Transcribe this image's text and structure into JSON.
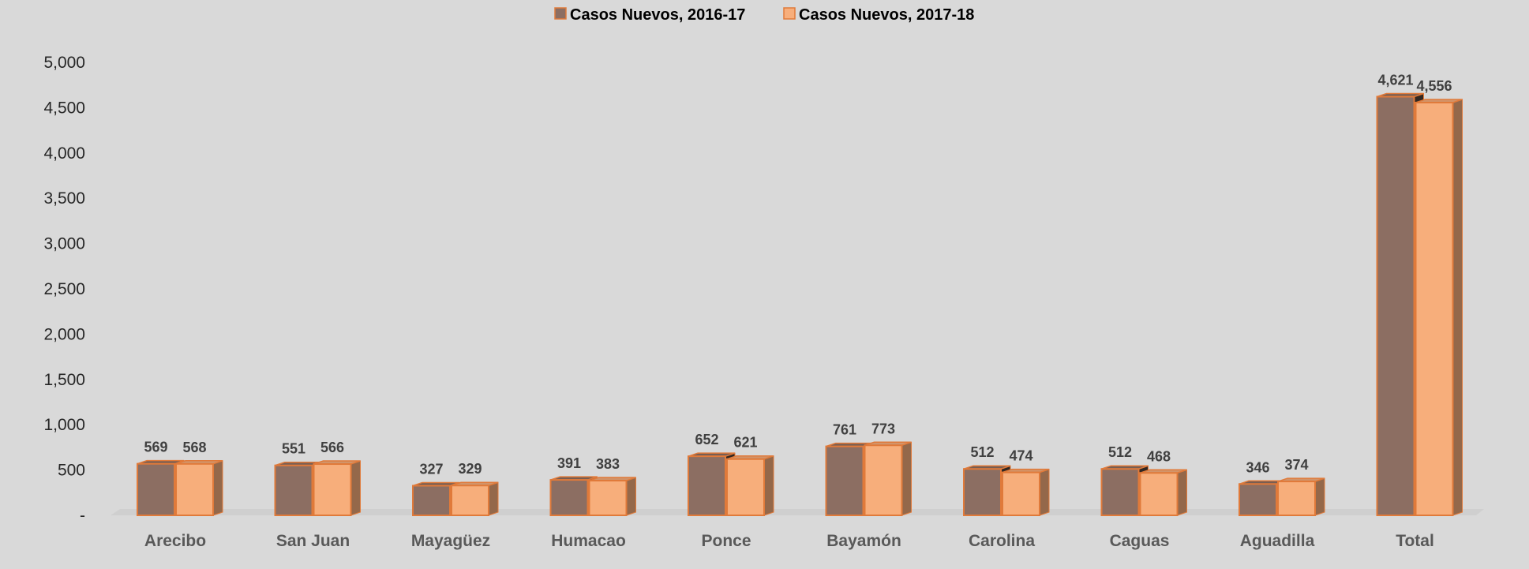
{
  "chart_data": {
    "type": "bar",
    "categories": [
      "Arecibo",
      "San Juan",
      "Mayagüez",
      "Humacao",
      "Ponce",
      "Bayamón",
      "Carolina",
      "Caguas",
      "Aguadilla",
      "Total"
    ],
    "series": [
      {
        "name": "Casos Nuevos, 2016-17",
        "values": [
          569,
          551,
          327,
          391,
          652,
          761,
          512,
          512,
          346,
          4621
        ],
        "labels": [
          "569",
          "551",
          "327",
          "391",
          "652",
          "761",
          "512",
          "512",
          "346",
          "4,621"
        ],
        "color": "#8c6e62"
      },
      {
        "name": "Casos Nuevos, 2017-18",
        "values": [
          568,
          566,
          329,
          383,
          621,
          773,
          474,
          468,
          374,
          4556
        ],
        "labels": [
          "568",
          "566",
          "329",
          "383",
          "621",
          "773",
          "474",
          "468",
          "374",
          "4,556"
        ],
        "color": "#f7ae7b"
      }
    ],
    "ylim": [
      0,
      5000
    ],
    "yticks": [
      0,
      500,
      1000,
      1500,
      2000,
      2500,
      3000,
      3500,
      4000,
      4500,
      5000
    ],
    "ytick_labels": [
      "-",
      "500",
      "1,000",
      "1,500",
      "2,000",
      "2,500",
      "3,000",
      "3,500",
      "4,000",
      "4,500",
      "5,000"
    ],
    "grid": false,
    "legend": "top-center",
    "title": "",
    "xlabel": "",
    "ylabel": "",
    "colors": {
      "background": "#d9d9d9",
      "edge": "#e07a3a"
    }
  }
}
